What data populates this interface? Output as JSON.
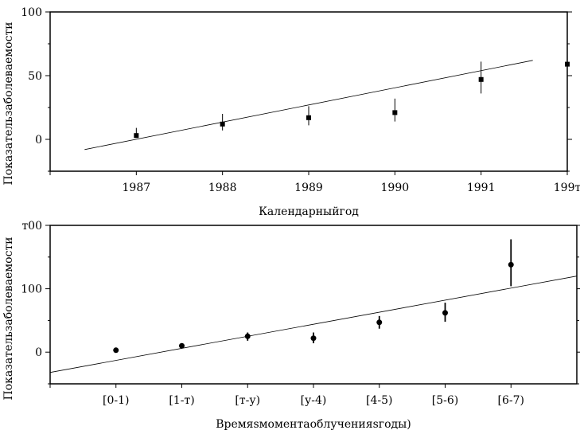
{
  "chart_data": [
    {
      "type": "scatter",
      "title": "",
      "xlabel": "Календарныйгод",
      "ylabel": "Показательзаболеваемости",
      "x_categories": [
        "1987",
        "1988",
        "1989",
        "1990",
        "1991",
        "199т"
      ],
      "x_range": [
        1986.0,
        1992.0
      ],
      "ylim": [
        -25,
        100
      ],
      "y_ticks": [
        0,
        50,
        100
      ],
      "y_tick_labels": [
        "0",
        "50",
        "100"
      ],
      "points": [
        {
          "x": 1987,
          "y": 3,
          "err_low": 2,
          "err_high": 9
        },
        {
          "x": 1988,
          "y": 12,
          "err_low": 7,
          "err_high": 20
        },
        {
          "x": 1989,
          "y": 17,
          "err_low": 11,
          "err_high": 26
        },
        {
          "x": 1990,
          "y": 21,
          "err_low": 14,
          "err_high": 32
        },
        {
          "x": 1991,
          "y": 47,
          "err_low": 36,
          "err_high": 61
        },
        {
          "x": 1992,
          "y": 59,
          "err_low": 46,
          "err_high": 76
        }
      ],
      "trend": {
        "x0": 1986.4,
        "y0": -8,
        "x1": 1991.6,
        "y1": 62
      },
      "marker": "square",
      "grid": false,
      "legend": "none"
    },
    {
      "type": "scatter",
      "title": "",
      "xlabel": "Времяsмоментаоблученияsгоды)",
      "ylabel": "Показательзаболеваемости",
      "x_categories": [
        "[0-1)",
        "[1-т)",
        "[т-у)",
        "[у-4)",
        "[4-5)",
        "[5-6)",
        "[6-7)"
      ],
      "x_range": [
        -1,
        7
      ],
      "ylim": [
        -50,
        200
      ],
      "y_ticks": [
        0,
        100,
        200
      ],
      "y_tick_labels": [
        "0",
        "100",
        "т00"
      ],
      "points": [
        {
          "x": 0,
          "y": 3,
          "err_low": 1,
          "err_high": 5
        },
        {
          "x": 1,
          "y": 10,
          "err_low": 6,
          "err_high": 14
        },
        {
          "x": 2,
          "y": 25,
          "err_low": 18,
          "err_high": 31
        },
        {
          "x": 3,
          "y": 22,
          "err_low": 14,
          "err_high": 31
        },
        {
          "x": 4,
          "y": 47,
          "err_low": 37,
          "err_high": 57
        },
        {
          "x": 5,
          "y": 62,
          "err_low": 48,
          "err_high": 78
        },
        {
          "x": 6,
          "y": 138,
          "err_low": 104,
          "err_high": 178
        }
      ],
      "trend": {
        "x0": -1.0,
        "y0": -32,
        "x1": 7.0,
        "y1": 120
      },
      "marker": "circle",
      "grid": false,
      "legend": "none"
    }
  ]
}
